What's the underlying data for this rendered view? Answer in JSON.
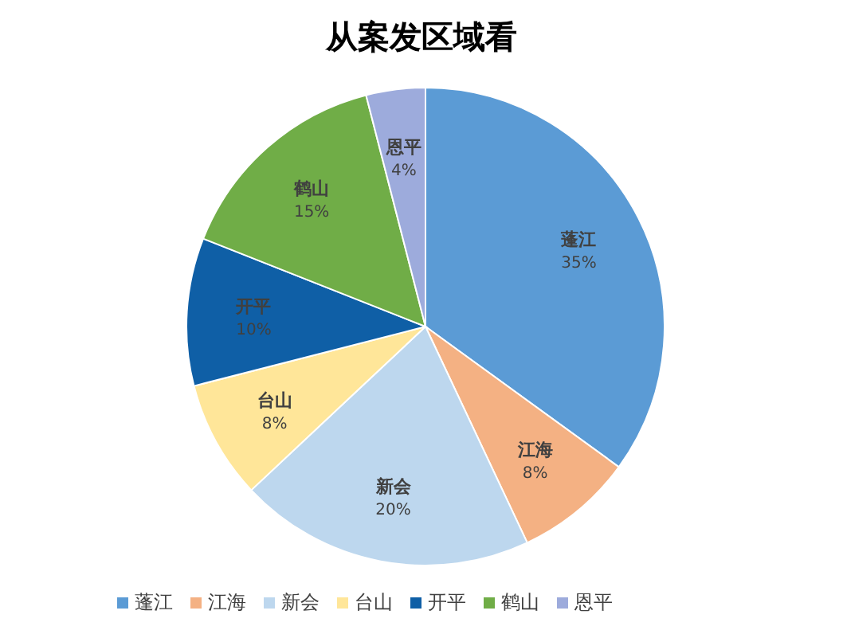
{
  "chart_data": {
    "type": "pie",
    "title": "从案发区域看",
    "categories": [
      "蓬江",
      "江海",
      "新会",
      "台山",
      "开平",
      "鹤山",
      "恩平"
    ],
    "values": [
      35,
      8,
      20,
      8,
      10,
      15,
      4
    ],
    "value_labels": [
      "35%",
      "8%",
      "20%",
      "8%",
      "10%",
      "15%",
      "4%"
    ],
    "colors": [
      "#5b9bd5",
      "#f4b183",
      "#bdd7ee",
      "#ffe699",
      "#0f5fa6",
      "#70ad47",
      "#9dabdc"
    ],
    "legend": "bottom"
  }
}
